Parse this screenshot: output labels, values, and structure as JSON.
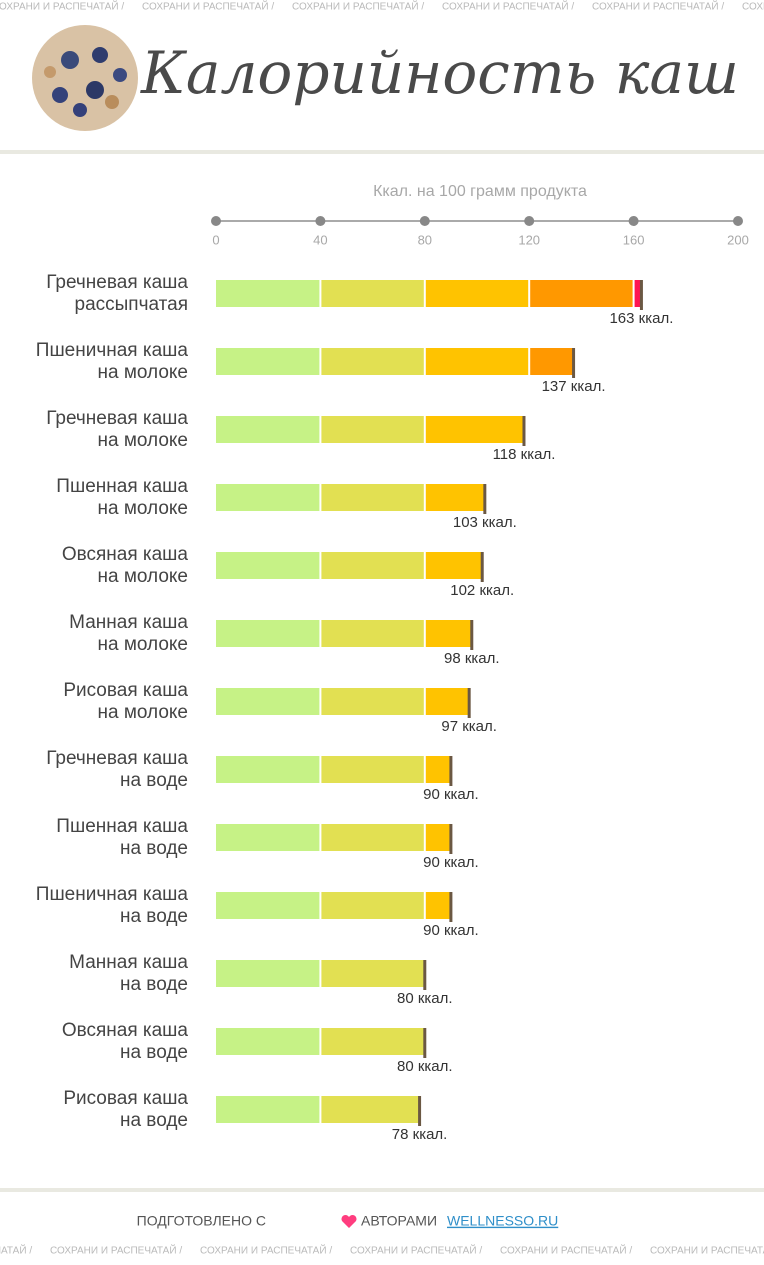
{
  "strip_text": "СОХРАНИ И РАСПЕЧАТАЙ /",
  "chart_data": {
    "type": "bar",
    "orientation": "horizontal",
    "title": "Калорийность каш",
    "x_label": "Ккал. на 100 грамм продукта",
    "categories": [
      [
        "Гречневая каша",
        "рассыпчатая"
      ],
      [
        "Пшеничная каша",
        "на молоке"
      ],
      [
        "Гречневая каша",
        "на молоке"
      ],
      [
        "Пшенная каша",
        "на молоке"
      ],
      [
        "Овсяная каша",
        "на молоке"
      ],
      [
        "Манная каша",
        "на молоке"
      ],
      [
        "Рисовая каша",
        "на молоке"
      ],
      [
        "Гречневая каша",
        "на воде"
      ],
      [
        "Пшенная каша",
        "на воде"
      ],
      [
        "Пшеничная каша",
        "на воде"
      ],
      [
        "Манная каша",
        "на воде"
      ],
      [
        "Овсяная каша",
        "на воде"
      ],
      [
        "Рисовая каша",
        "на воде"
      ]
    ],
    "values": [
      163,
      137,
      118,
      103,
      102,
      98,
      97,
      90,
      90,
      90,
      80,
      80,
      78
    ],
    "value_labels": [
      "163 ккал.",
      "137 ккал.",
      "118 ккал.",
      "103 ккал.",
      "102 ккал.",
      "98 ккал.",
      "97 ккал.",
      "90 ккал.",
      "90 ккал.",
      "90 ккал.",
      "80 ккал.",
      "80 ккал.",
      "78 ккал."
    ],
    "xlim": [
      0,
      200
    ],
    "xticks": [
      0,
      40,
      80,
      120,
      160,
      200
    ],
    "band_colors": [
      "#c6f286",
      "#e2e052",
      "#ffc300",
      "#ff9800",
      "#ff1552"
    ],
    "end_color": "#6b5843"
  },
  "footer": {
    "prefix": "ПОДГОТОВЛЕНО С",
    "middle": "АВТОРАМИ",
    "link": "WELLNESSO.RU"
  }
}
